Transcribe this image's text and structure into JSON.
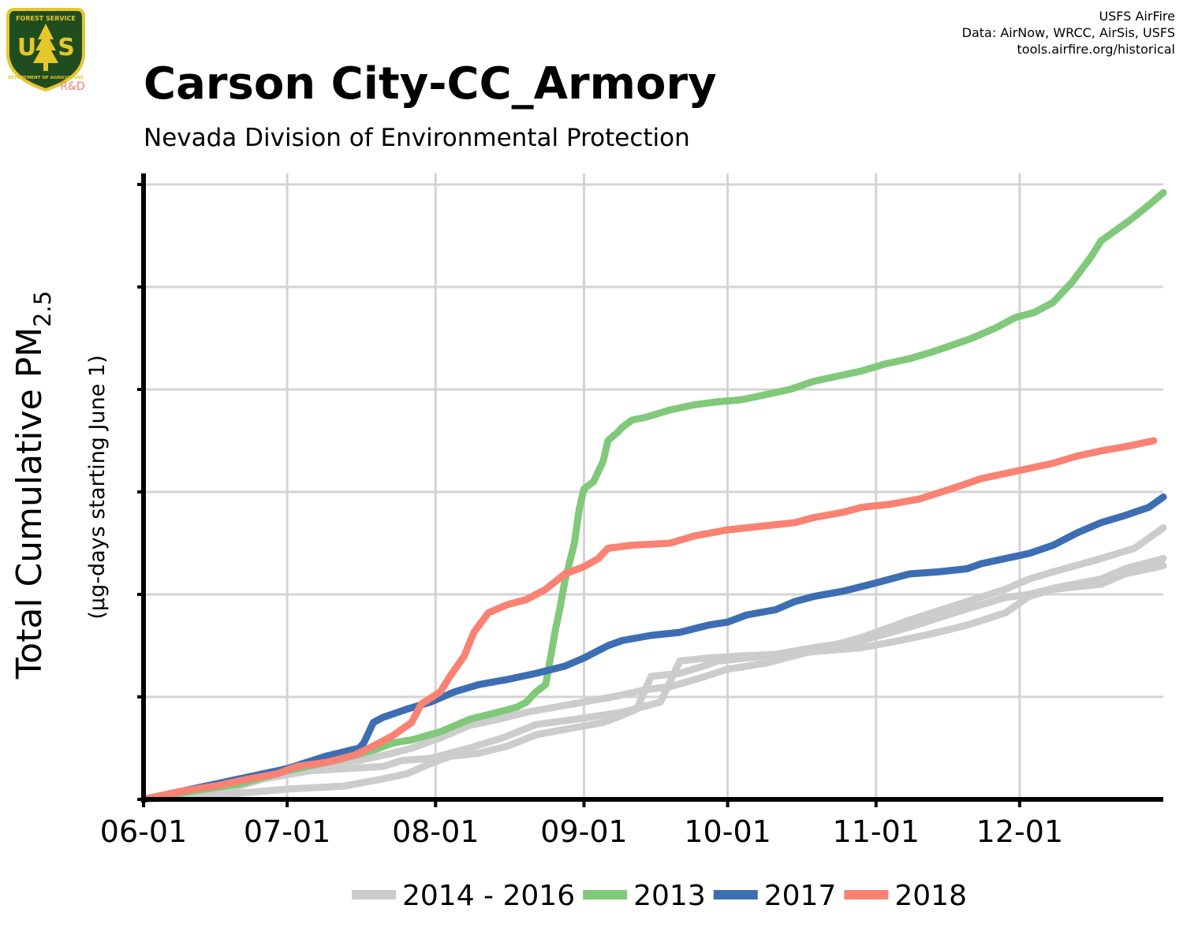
{
  "header": {
    "title": "Carson City-CC_Armory",
    "subtitle": "Nevada Division of Environmental Protection",
    "credits": [
      "USFS AirFire",
      "Data: AirNow, WRCC, AirSis, USFS",
      "tools.airfire.org/historical"
    ]
  },
  "logo": {
    "text_top": "FOREST SERVICE",
    "text_bottom": "DEPARTMENT OF AGRICULTURE",
    "initials_left": "U",
    "initials_right": "S",
    "tag": "R&D",
    "colors": {
      "shield": "#1f4d1f",
      "gold": "#e6c62d",
      "tag": "#f08070"
    }
  },
  "chart_data": {
    "type": "line",
    "title": "Carson City-CC_Armory",
    "subtitle": "Nevada Division of Environmental Protection",
    "ylabel": "Total Cumulative PM",
    "ylabel_subscript": "2.5",
    "ylabel_secondary": "(µg-days starting June 1)",
    "xlabel": "",
    "x_ticks": [
      {
        "label": "06-01",
        "day": 0
      },
      {
        "label": "07-01",
        "day": 30
      },
      {
        "label": "08-01",
        "day": 61
      },
      {
        "label": "09-01",
        "day": 92
      },
      {
        "label": "10-01",
        "day": 122
      },
      {
        "label": "11-01",
        "day": 153
      },
      {
        "label": "12-01",
        "day": 183
      }
    ],
    "xlim": [
      0,
      213
    ],
    "ylim": [
      0,
      6
    ],
    "y_gridlines": [
      0,
      1,
      2,
      3,
      4,
      5,
      6
    ],
    "y_tick_labels_shown": false,
    "grid": true,
    "legend_position": "bottom",
    "legend": [
      {
        "label": "2014 - 2016",
        "color": "#cccccc"
      },
      {
        "label": "2013",
        "color": "#80c97a"
      },
      {
        "label": "2017",
        "color": "#3d6eb3"
      },
      {
        "label": "2018",
        "color": "#f98273"
      }
    ],
    "series": [
      {
        "name": "2014 - 2016",
        "color": "#cccccc",
        "values": [
          [
            0,
            0
          ],
          [
            10,
            0.05
          ],
          [
            20,
            0.13
          ],
          [
            30,
            0.27
          ],
          [
            36,
            0.35
          ],
          [
            45,
            0.38
          ],
          [
            52,
            0.45
          ],
          [
            56,
            0.5
          ],
          [
            62,
            0.6
          ],
          [
            68,
            0.72
          ],
          [
            74,
            0.78
          ],
          [
            80,
            0.85
          ],
          [
            86,
            0.9
          ],
          [
            92,
            0.95
          ],
          [
            98,
            1.0
          ],
          [
            105,
            1.07
          ],
          [
            110,
            1.1
          ],
          [
            116,
            1.18
          ],
          [
            122,
            1.27
          ],
          [
            130,
            1.33
          ],
          [
            140,
            1.45
          ],
          [
            150,
            1.58
          ],
          [
            160,
            1.75
          ],
          [
            170,
            1.9
          ],
          [
            180,
            2.05
          ],
          [
            185,
            2.15
          ],
          [
            190,
            2.22
          ],
          [
            200,
            2.35
          ],
          [
            207,
            2.45
          ],
          [
            213,
            2.65
          ]
        ]
      },
      {
        "name": "2014 - 2016",
        "color": "#cccccc",
        "values": [
          [
            0,
            0
          ],
          [
            15,
            0.04
          ],
          [
            30,
            0.1
          ],
          [
            42,
            0.13
          ],
          [
            50,
            0.2
          ],
          [
            55,
            0.25
          ],
          [
            60,
            0.35
          ],
          [
            64,
            0.42
          ],
          [
            70,
            0.45
          ],
          [
            76,
            0.52
          ],
          [
            82,
            0.63
          ],
          [
            90,
            0.7
          ],
          [
            96,
            0.75
          ],
          [
            100,
            0.82
          ],
          [
            103,
            0.88
          ],
          [
            106,
            1.2
          ],
          [
            112,
            1.23
          ],
          [
            117,
            1.3
          ],
          [
            120,
            1.35
          ],
          [
            130,
            1.4
          ],
          [
            140,
            1.48
          ],
          [
            150,
            1.55
          ],
          [
            160,
            1.68
          ],
          [
            170,
            1.83
          ],
          [
            180,
            1.97
          ],
          [
            185,
            2.0
          ],
          [
            190,
            2.06
          ],
          [
            200,
            2.15
          ],
          [
            205,
            2.25
          ],
          [
            213,
            2.35
          ]
        ]
      },
      {
        "name": "2014 - 2016",
        "color": "#cccccc",
        "values": [
          [
            0,
            0
          ],
          [
            12,
            0.1
          ],
          [
            25,
            0.2
          ],
          [
            35,
            0.28
          ],
          [
            42,
            0.3
          ],
          [
            50,
            0.32
          ],
          [
            54,
            0.38
          ],
          [
            60,
            0.4
          ],
          [
            68,
            0.5
          ],
          [
            75,
            0.6
          ],
          [
            82,
            0.73
          ],
          [
            90,
            0.78
          ],
          [
            100,
            0.85
          ],
          [
            108,
            0.95
          ],
          [
            112,
            1.35
          ],
          [
            118,
            1.38
          ],
          [
            125,
            1.4
          ],
          [
            135,
            1.42
          ],
          [
            142,
            1.45
          ],
          [
            150,
            1.48
          ],
          [
            158,
            1.55
          ],
          [
            165,
            1.62
          ],
          [
            172,
            1.7
          ],
          [
            180,
            1.82
          ],
          [
            185,
            1.98
          ],
          [
            190,
            2.05
          ],
          [
            200,
            2.1
          ],
          [
            205,
            2.2
          ],
          [
            213,
            2.28
          ]
        ]
      },
      {
        "name": "2013",
        "color": "#80c97a",
        "values": [
          [
            0,
            0
          ],
          [
            10,
            0.08
          ],
          [
            20,
            0.15
          ],
          [
            30,
            0.28
          ],
          [
            40,
            0.38
          ],
          [
            48,
            0.48
          ],
          [
            52,
            0.55
          ],
          [
            56,
            0.58
          ],
          [
            62,
            0.66
          ],
          [
            68,
            0.78
          ],
          [
            74,
            0.85
          ],
          [
            78,
            0.9
          ],
          [
            80,
            0.95
          ],
          [
            82,
            1.05
          ],
          [
            84,
            1.12
          ],
          [
            85,
            1.38
          ],
          [
            86,
            1.65
          ],
          [
            87,
            1.87
          ],
          [
            88,
            2.13
          ],
          [
            90,
            2.5
          ],
          [
            91,
            2.83
          ],
          [
            92,
            3.03
          ],
          [
            94,
            3.1
          ],
          [
            96,
            3.3
          ],
          [
            97,
            3.5
          ],
          [
            99,
            3.58
          ],
          [
            100,
            3.63
          ],
          [
            102,
            3.7
          ],
          [
            105,
            3.73
          ],
          [
            110,
            3.8
          ],
          [
            115,
            3.85
          ],
          [
            120,
            3.88
          ],
          [
            125,
            3.9
          ],
          [
            130,
            3.95
          ],
          [
            135,
            4.0
          ],
          [
            140,
            4.08
          ],
          [
            145,
            4.13
          ],
          [
            150,
            4.18
          ],
          [
            155,
            4.25
          ],
          [
            160,
            4.3
          ],
          [
            165,
            4.37
          ],
          [
            170,
            4.45
          ],
          [
            173,
            4.5
          ],
          [
            178,
            4.6
          ],
          [
            182,
            4.7
          ],
          [
            186,
            4.75
          ],
          [
            190,
            4.85
          ],
          [
            194,
            5.05
          ],
          [
            198,
            5.3
          ],
          [
            200,
            5.45
          ],
          [
            206,
            5.65
          ],
          [
            210,
            5.8
          ],
          [
            213,
            5.92
          ]
        ]
      },
      {
        "name": "2017",
        "color": "#3d6eb3",
        "values": [
          [
            0,
            0
          ],
          [
            10,
            0.1
          ],
          [
            20,
            0.2
          ],
          [
            30,
            0.3
          ],
          [
            38,
            0.42
          ],
          [
            45,
            0.5
          ],
          [
            46,
            0.55
          ],
          [
            48,
            0.75
          ],
          [
            50,
            0.8
          ],
          [
            55,
            0.88
          ],
          [
            60,
            0.95
          ],
          [
            65,
            1.05
          ],
          [
            70,
            1.12
          ],
          [
            76,
            1.17
          ],
          [
            82,
            1.23
          ],
          [
            88,
            1.3
          ],
          [
            92,
            1.38
          ],
          [
            97,
            1.5
          ],
          [
            100,
            1.55
          ],
          [
            106,
            1.6
          ],
          [
            112,
            1.63
          ],
          [
            118,
            1.7
          ],
          [
            122,
            1.73
          ],
          [
            126,
            1.8
          ],
          [
            132,
            1.85
          ],
          [
            136,
            1.93
          ],
          [
            140,
            1.98
          ],
          [
            146,
            2.03
          ],
          [
            152,
            2.1
          ],
          [
            156,
            2.15
          ],
          [
            160,
            2.2
          ],
          [
            166,
            2.22
          ],
          [
            172,
            2.25
          ],
          [
            175,
            2.3
          ],
          [
            180,
            2.35
          ],
          [
            185,
            2.4
          ],
          [
            190,
            2.48
          ],
          [
            195,
            2.6
          ],
          [
            200,
            2.7
          ],
          [
            205,
            2.77
          ],
          [
            210,
            2.85
          ],
          [
            213,
            2.95
          ]
        ]
      },
      {
        "name": "2018",
        "color": "#f98273",
        "values": [
          [
            0,
            0
          ],
          [
            8,
            0.08
          ],
          [
            15,
            0.13
          ],
          [
            22,
            0.2
          ],
          [
            28,
            0.25
          ],
          [
            32,
            0.32
          ],
          [
            38,
            0.36
          ],
          [
            44,
            0.43
          ],
          [
            48,
            0.52
          ],
          [
            52,
            0.62
          ],
          [
            56,
            0.75
          ],
          [
            58,
            0.93
          ],
          [
            62,
            1.05
          ],
          [
            64,
            1.2
          ],
          [
            67,
            1.4
          ],
          [
            69,
            1.63
          ],
          [
            72,
            1.82
          ],
          [
            76,
            1.9
          ],
          [
            80,
            1.95
          ],
          [
            84,
            2.05
          ],
          [
            88,
            2.2
          ],
          [
            92,
            2.27
          ],
          [
            95,
            2.35
          ],
          [
            97,
            2.45
          ],
          [
            102,
            2.48
          ],
          [
            110,
            2.5
          ],
          [
            115,
            2.57
          ],
          [
            122,
            2.63
          ],
          [
            130,
            2.67
          ],
          [
            136,
            2.7
          ],
          [
            140,
            2.75
          ],
          [
            146,
            2.8
          ],
          [
            150,
            2.85
          ],
          [
            156,
            2.88
          ],
          [
            162,
            2.93
          ],
          [
            170,
            3.05
          ],
          [
            175,
            3.13
          ],
          [
            180,
            3.18
          ],
          [
            185,
            3.23
          ],
          [
            190,
            3.28
          ],
          [
            195,
            3.35
          ],
          [
            200,
            3.4
          ],
          [
            206,
            3.45
          ],
          [
            211,
            3.5
          ]
        ]
      }
    ]
  }
}
